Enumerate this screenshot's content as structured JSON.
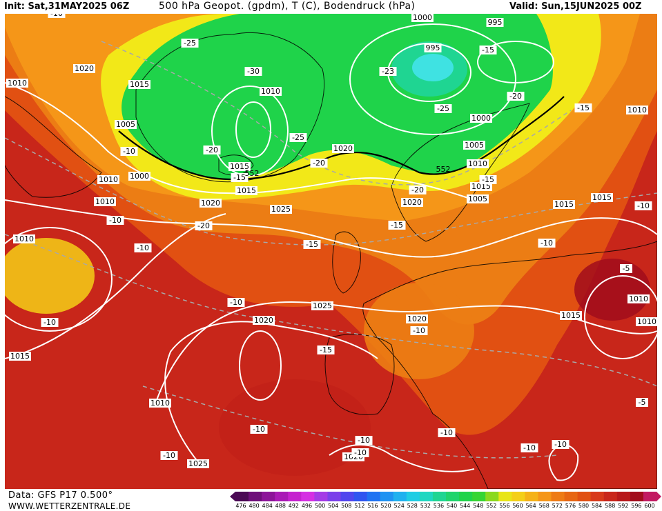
{
  "header": {
    "init": "Init: Sat,31MAY2025 06Z",
    "title": "500 hPa Geopot. (gpdm), T (C), Bodendruck (hPa)",
    "valid": "Valid: Sun,15JUN2025 00Z"
  },
  "footer": {
    "data_source": "Data: GFS P17 0.500°",
    "website": "WWW.WETTERZENTRALE.DE"
  },
  "colors": {
    "green": "#1fd34a",
    "cyan": "#3fe2e2",
    "yellow": "#f2e818",
    "orange_light": "#f5a41a",
    "orange": "#ec7d14",
    "orange_dark": "#e15a12",
    "red": "#c8261a",
    "red_dark": "#b10f19",
    "isobar": "#ffffff",
    "temp_line": "#a8a8a8"
  },
  "colorbar": {
    "ticks": [
      "476",
      "480",
      "484",
      "488",
      "492",
      "496",
      "500",
      "504",
      "508",
      "512",
      "516",
      "520",
      "524",
      "528",
      "532",
      "536",
      "540",
      "544",
      "548",
      "552",
      "556",
      "560",
      "564",
      "568",
      "572",
      "576",
      "580",
      "584",
      "588",
      "592",
      "596",
      "600"
    ],
    "colors": [
      "#4b0a55",
      "#6e0f7a",
      "#8c1499",
      "#a91ab6",
      "#c522cf",
      "#d52fe3",
      "#a43be6",
      "#7a40ea",
      "#5046ee",
      "#2f55f0",
      "#1f73f2",
      "#1e93f2",
      "#1fb1ef",
      "#1fcde4",
      "#1fd7c1",
      "#1fd592",
      "#1fd46c",
      "#1fd34a",
      "#36d533",
      "#8ad91e",
      "#e8e517",
      "#f4cf17",
      "#f5b217",
      "#f59618",
      "#ee7b15",
      "#e76613",
      "#e15012",
      "#d8391a",
      "#c9261b",
      "#b7181a",
      "#a10d1c",
      "#c21a62"
    ]
  },
  "isobar_labels": [
    "1000",
    "995",
    "995",
    "1020",
    "1010",
    "1015",
    "1010",
    "1005",
    "1000",
    "1010",
    "1015",
    "1020",
    "1005",
    "1000",
    "1010",
    "1015",
    "1010",
    "1005",
    "1010",
    "1020",
    "1025",
    "1020",
    "1015",
    "1015",
    "1015",
    "1010",
    "1010",
    "1025",
    "1020",
    "1020",
    "1015",
    "1010",
    "1010",
    "1025",
    "1020",
    "1015"
  ],
  "temp_labels": [
    "-10",
    "-25",
    "-30",
    "-23",
    "-15",
    "-20",
    "-25",
    "-20",
    "-25",
    "-20",
    "-20",
    "-15",
    "-15",
    "-10",
    "-10",
    "-15",
    "-20",
    "-15",
    "-10",
    "-15",
    "-10",
    "-10",
    "-10",
    "-15",
    "-10",
    "-10",
    "-10",
    "-10",
    "-10",
    "-5",
    "-5",
    "-10",
    "-10",
    "-10",
    "-10"
  ],
  "height_labels": [
    "552",
    "552"
  ]
}
